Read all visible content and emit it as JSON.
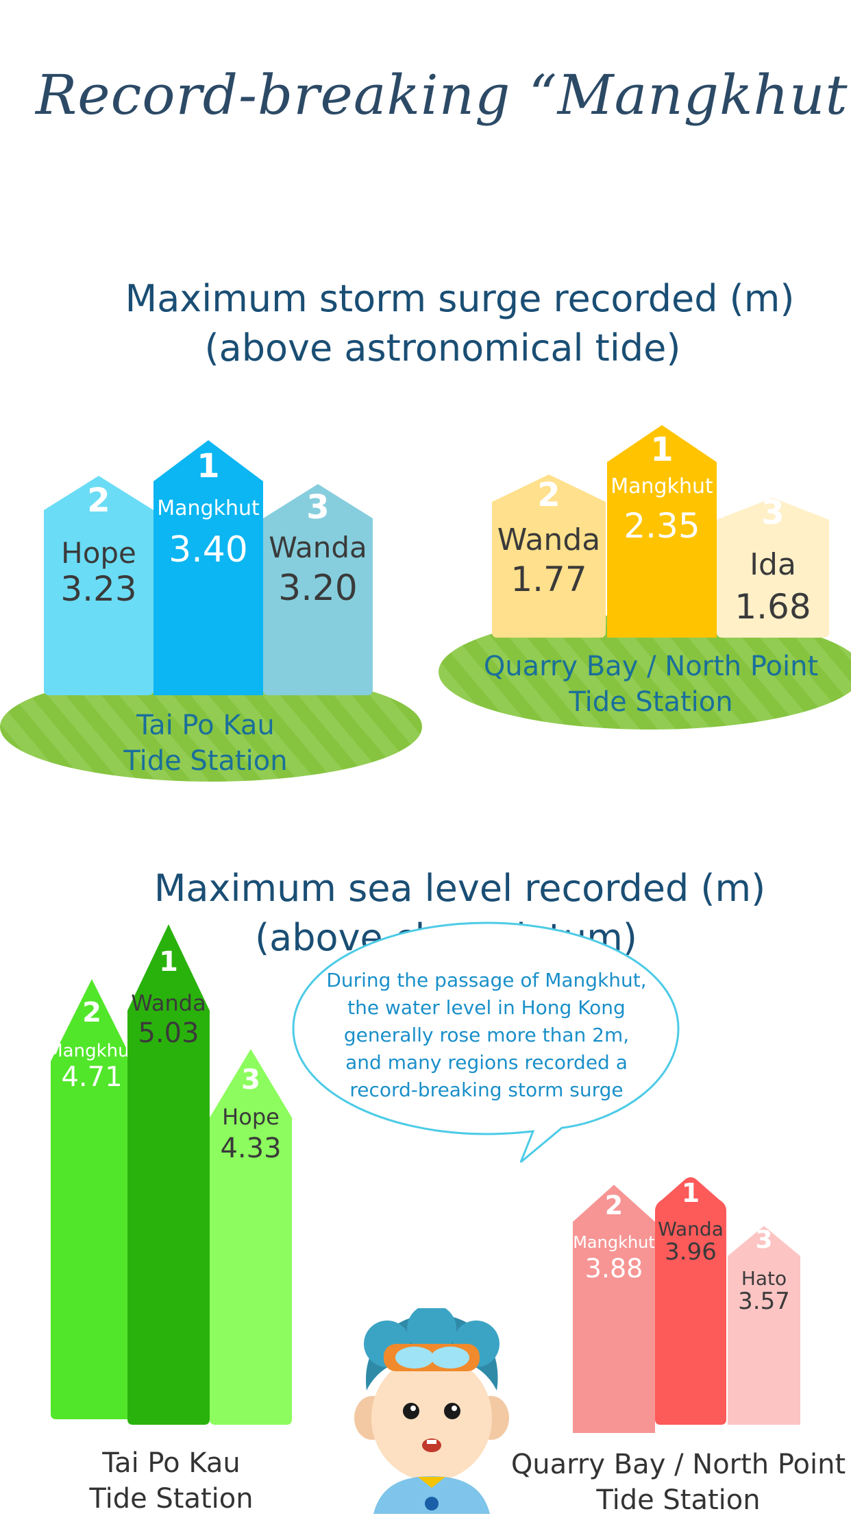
{
  "title": "Record-breaking “Mangkhut”",
  "surge": {
    "heading_line1": "Maximum storm surge recorded (m)",
    "heading_line2": "(above astronomical tide)",
    "tai_po_kau": {
      "station_line1": "Tai Po Kau",
      "station_line2": "Tide Station",
      "bars": [
        {
          "rank": "2",
          "name": "Hope",
          "value": "3.23",
          "color": "#6bdcf5"
        },
        {
          "rank": "1",
          "name": "Mangkhut",
          "value": "3.40",
          "color": "#0bb6f2"
        },
        {
          "rank": "3",
          "name": "Wanda",
          "value": "3.20",
          "color": "#86cedd"
        }
      ]
    },
    "quarry_bay": {
      "station_line1": "Quarry Bay / North Point",
      "station_line2": "Tide Station",
      "bars": [
        {
          "rank": "2",
          "name": "Wanda",
          "value": "1.77",
          "color": "#ffe08c"
        },
        {
          "rank": "1",
          "name": "Mangkhut",
          "value": "2.35",
          "color": "#ffc300"
        },
        {
          "rank": "3",
          "name": "Ida",
          "value": "1.68",
          "color": "#fff0c8"
        }
      ]
    }
  },
  "sea_level": {
    "heading_line1": "Maximum sea level recorded (m)",
    "heading_line2": "(above chart datum)",
    "tai_po_kau": {
      "station_line1": "Tai Po Kau",
      "station_line2": "Tide Station",
      "bars": [
        {
          "rank": "2",
          "name": "Mangkhut",
          "value": "4.71",
          "color": "#52e62a"
        },
        {
          "rank": "1",
          "name": "Wanda",
          "value": "5.03",
          "color": "#2ab20c"
        },
        {
          "rank": "3",
          "name": "Hope",
          "value": "4.33",
          "color": "#8cfc5e"
        }
      ]
    },
    "quarry_bay": {
      "station_line1": "Quarry Bay / North Point",
      "station_line2": "Tide Station",
      "bars": [
        {
          "rank": "2",
          "name": "Mangkhut",
          "value": "3.88",
          "color": "#f69594"
        },
        {
          "rank": "1",
          "name": "Wanda",
          "value": "3.96",
          "color": "#fd5a5a"
        },
        {
          "rank": "3",
          "name": "Hato",
          "value": "3.57",
          "color": "#fdc4c4"
        }
      ]
    }
  },
  "bubble": {
    "line1": "During the passage of Mangkhut,",
    "line2": "the water level in Hong Kong",
    "line3": "generally rose more than 2m,",
    "line4": "and many regions recorded a",
    "line5": "record-breaking storm surge"
  },
  "colors": {
    "heading": "#1a4e74",
    "hill": "#86c440",
    "station_surge": "#1a6f9a",
    "station_sea": "#333333"
  },
  "mascot_icon": "boy-with-goggles-mascot"
}
